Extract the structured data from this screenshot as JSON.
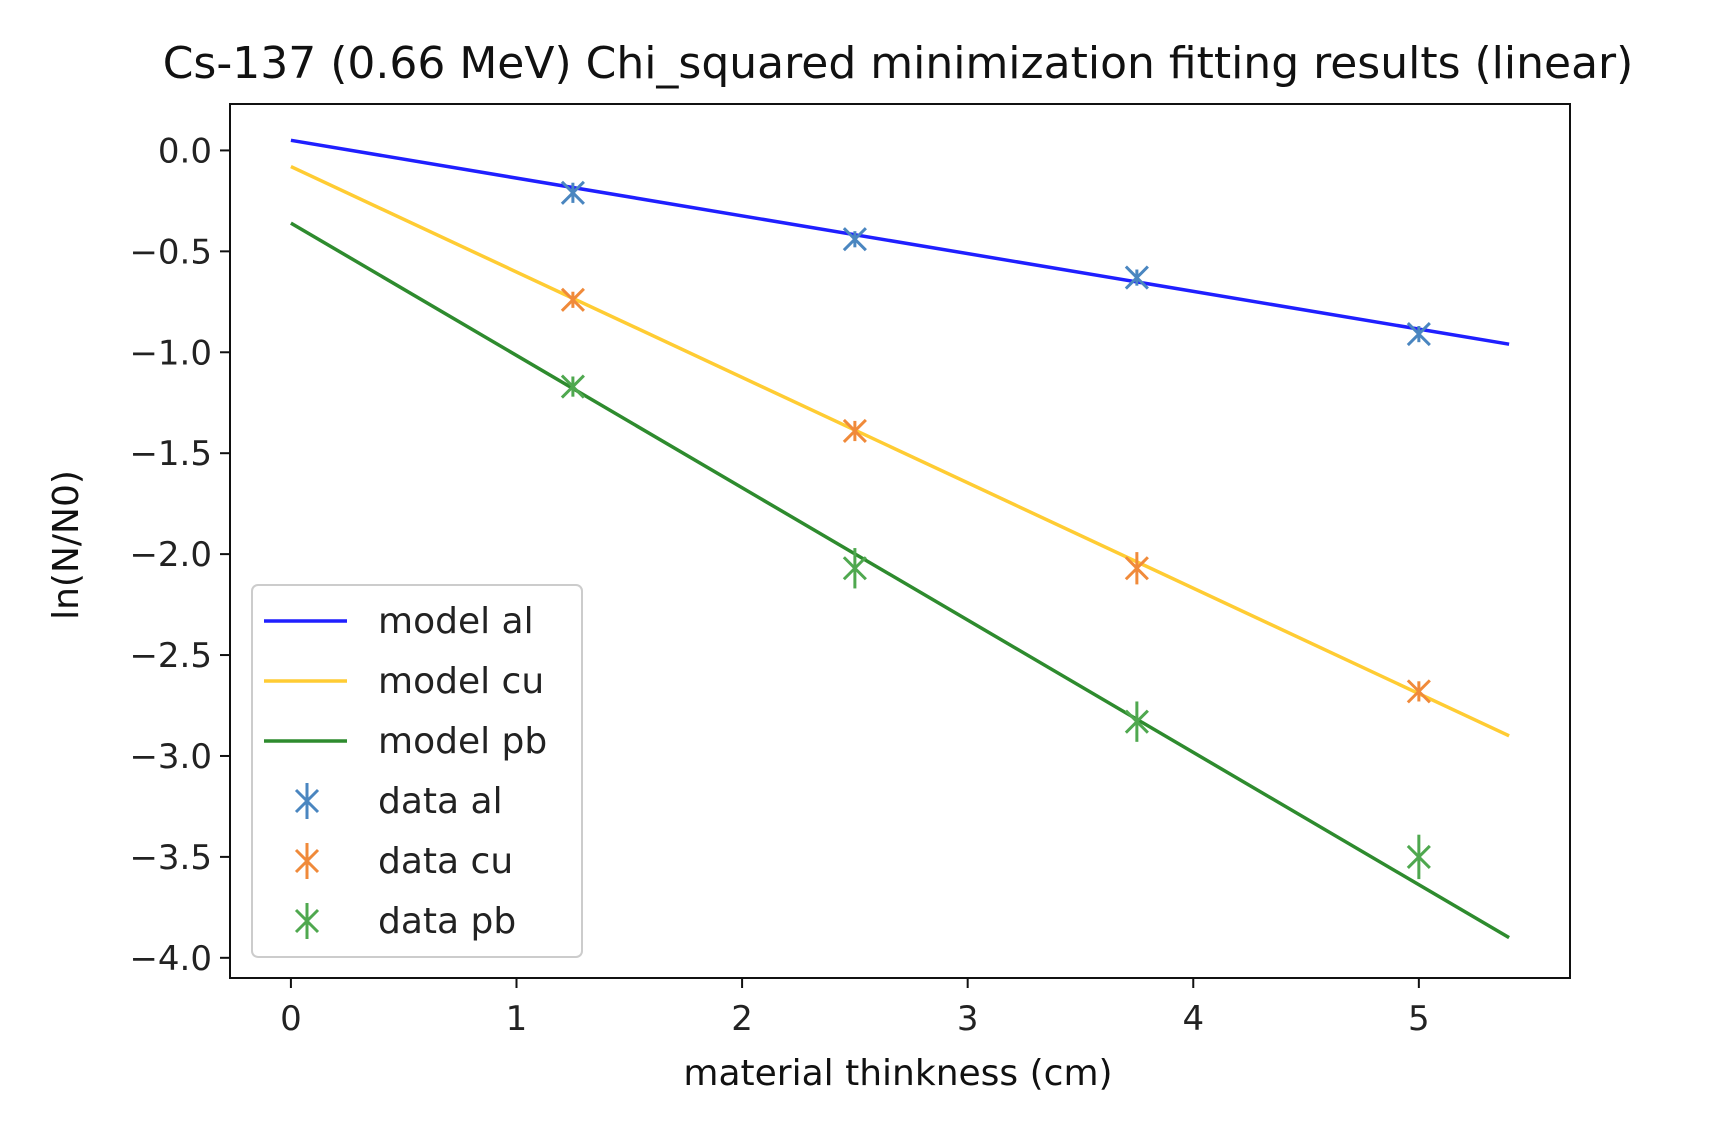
{
  "chart_data": {
    "type": "line",
    "title": "Cs-137 (0.66 MeV) Chi_squared minimization fitting results (linear)",
    "xlabel": "material thinkness (cm)",
    "ylabel": "ln(N/N0)",
    "xlim": [
      -0.27,
      5.67
    ],
    "ylim": [
      -4.1,
      0.23
    ],
    "xticks": [
      0,
      1,
      2,
      3,
      4,
      5
    ],
    "xtick_labels": [
      "0",
      "1",
      "2",
      "3",
      "4",
      "5"
    ],
    "yticks": [
      0.0,
      -0.5,
      -1.0,
      -1.5,
      -2.0,
      -2.5,
      -3.0,
      -3.5,
      -4.0
    ],
    "ytick_labels": [
      "0.0",
      "−0.5",
      "−1.0",
      "−1.5",
      "−2.0",
      "−2.5",
      "−3.0",
      "−3.5",
      "−4.0"
    ],
    "grid": false,
    "legend_position": "lower-left",
    "lines": [
      {
        "name": "model al",
        "color": "#1f1fff",
        "x": [
          0,
          5.4
        ],
        "y": [
          0.05,
          -0.96
        ]
      },
      {
        "name": "model cu",
        "color": "#ffcc33",
        "x": [
          0,
          5.4
        ],
        "y": [
          -0.08,
          -2.9
        ]
      },
      {
        "name": "model pb",
        "color": "#2e8b2e",
        "x": [
          0,
          5.4
        ],
        "y": [
          -0.36,
          -3.9
        ]
      }
    ],
    "series": [
      {
        "name": "data al",
        "color": "#4a86c0",
        "x": [
          1.25,
          2.5,
          3.75,
          5.0
        ],
        "y": [
          -0.21,
          -0.44,
          -0.63,
          -0.91
        ],
        "yerr": [
          0.05,
          0.04,
          0.04,
          0.04
        ]
      },
      {
        "name": "data cu",
        "color": "#f08a3a",
        "x": [
          1.25,
          2.5,
          3.75,
          5.0
        ],
        "y": [
          -0.74,
          -1.39,
          -2.07,
          -2.68
        ],
        "yerr": [
          0.04,
          0.05,
          0.08,
          0.05
        ]
      },
      {
        "name": "data pb",
        "color": "#4fa84f",
        "x": [
          1.25,
          2.5,
          3.75,
          5.0
        ],
        "y": [
          -1.17,
          -2.07,
          -2.83,
          -3.5
        ],
        "yerr": [
          0.05,
          0.1,
          0.1,
          0.11
        ]
      }
    ]
  }
}
